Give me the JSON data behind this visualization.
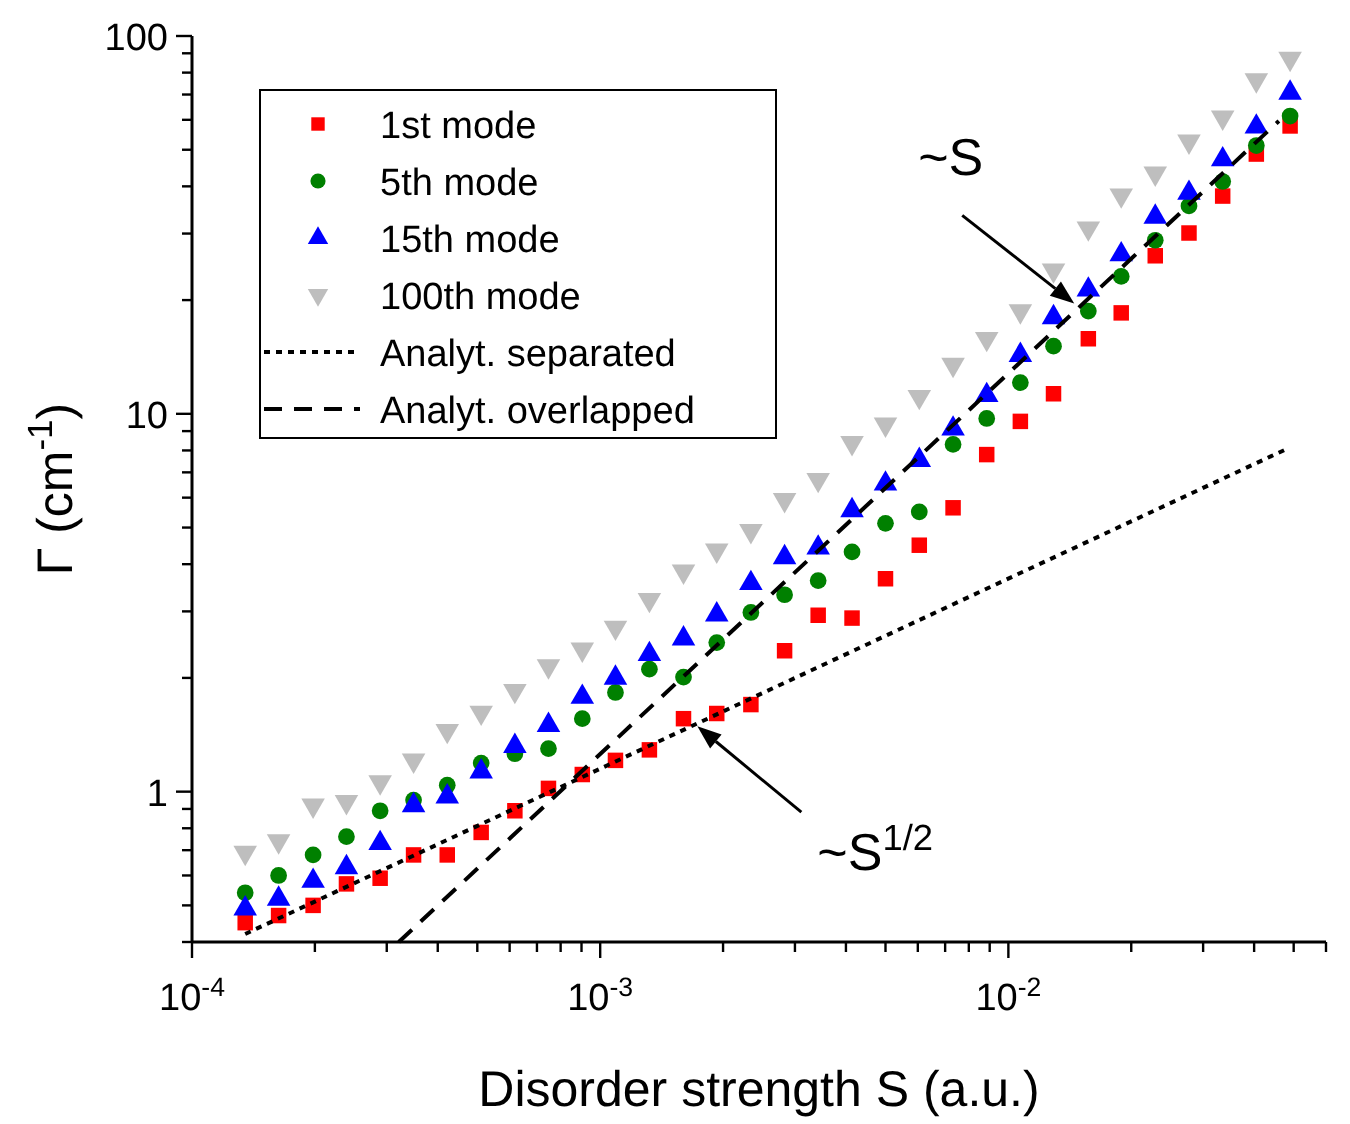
{
  "chart_data": {
    "type": "scatter",
    "xlabel": "Disorder strength S (a.u.)",
    "ylabel": "Γ (cm$^{-1}$)",
    "log": "xy",
    "xlim": [
      0.0001,
      0.06
    ],
    "ylim": [
      0.4,
      100
    ],
    "xticks": [
      {
        "value": 0.0001,
        "label": "10$^{-4}$"
      },
      {
        "value": 0.0002,
        "label": null
      },
      {
        "value": 0.0003,
        "label": null
      },
      {
        "value": 0.0004,
        "label": null
      },
      {
        "value": 0.0005,
        "label": null
      },
      {
        "value": 0.0006,
        "label": null
      },
      {
        "value": 0.0007,
        "label": null
      },
      {
        "value": 0.0008,
        "label": null
      },
      {
        "value": 0.0009,
        "label": null
      },
      {
        "value": 0.001,
        "label": "10$^{-3}$"
      },
      {
        "value": 0.002,
        "label": null
      },
      {
        "value": 0.003,
        "label": null
      },
      {
        "value": 0.004,
        "label": null
      },
      {
        "value": 0.005,
        "label": null
      },
      {
        "value": 0.006,
        "label": null
      },
      {
        "value": 0.007,
        "label": null
      },
      {
        "value": 0.008,
        "label": null
      },
      {
        "value": 0.009,
        "label": null
      },
      {
        "value": 0.01,
        "label": "10$^{-2}$"
      },
      {
        "value": 0.02,
        "label": null
      },
      {
        "value": 0.03,
        "label": null
      },
      {
        "value": 0.04,
        "label": null
      },
      {
        "value": 0.05,
        "label": null
      },
      {
        "value": 0.06,
        "label": null
      }
    ],
    "yticks": [
      {
        "value": 0.4,
        "label": null
      },
      {
        "value": 0.5,
        "label": null
      },
      {
        "value": 0.6,
        "label": null
      },
      {
        "value": 0.7,
        "label": null
      },
      {
        "value": 0.8,
        "label": null
      },
      {
        "value": 0.9,
        "label": null
      },
      1,
      {
        "value": 2,
        "label": null
      },
      {
        "value": 3,
        "label": null
      },
      {
        "value": 4,
        "label": null
      },
      {
        "value": 5,
        "label": null
      },
      {
        "value": 6,
        "label": null
      },
      {
        "value": 7,
        "label": null
      },
      {
        "value": 8,
        "label": null
      },
      {
        "value": 9,
        "label": null
      },
      10,
      {
        "value": 20,
        "label": null
      },
      {
        "value": 30,
        "label": null
      },
      {
        "value": 40,
        "label": null
      },
      {
        "value": 50,
        "label": null
      },
      {
        "value": 60,
        "label": null
      },
      {
        "value": 70,
        "label": null
      },
      {
        "value": 80,
        "label": null
      },
      {
        "value": 90,
        "label": null
      },
      100
    ],
    "x": [
      0.000135,
      0.000163,
      0.000198,
      0.000239,
      0.000289,
      0.000349,
      0.000422,
      0.000511,
      0.000618,
      0.000747,
      0.000904,
      0.00109,
      0.00132,
      0.0016,
      0.00193,
      0.00234,
      0.00283,
      0.00342,
      0.00414,
      0.005,
      0.00605,
      0.00732,
      0.00885,
      0.0107,
      0.0129,
      0.0157,
      0.0189,
      0.0229,
      0.0277,
      0.0335,
      0.0405,
      0.049
    ],
    "legend": "top left",
    "grid": false,
    "series": [
      {
        "name": "1st mode",
        "color": "#ff0000",
        "marker": "square",
        "values": [
          0.45,
          0.47,
          0.5,
          0.57,
          0.59,
          0.68,
          0.68,
          0.78,
          0.89,
          1.02,
          1.11,
          1.21,
          1.29,
          1.56,
          1.61,
          1.7,
          2.36,
          2.93,
          2.88,
          3.66,
          4.49,
          5.64,
          7.8,
          9.55,
          11.3,
          15.8,
          18.5,
          26.2,
          30.1,
          37.7,
          48.7,
          57.8
        ]
      },
      {
        "name": "5th mode",
        "color": "#008000",
        "marker": "circle",
        "values": [
          0.54,
          0.6,
          0.68,
          0.76,
          0.89,
          0.95,
          1.04,
          1.19,
          1.26,
          1.3,
          1.56,
          1.83,
          2.11,
          2.01,
          2.48,
          2.98,
          3.32,
          3.62,
          4.31,
          5.13,
          5.5,
          8.3,
          9.72,
          12.1,
          15.1,
          18.7,
          23.1,
          28.8,
          35.5,
          41.2,
          51.3,
          61.4
        ]
      },
      {
        "name": "15th mode",
        "color": "#0000ff",
        "marker": "triangle",
        "values": [
          0.49,
          0.52,
          0.58,
          0.63,
          0.73,
          0.92,
          0.97,
          1.13,
          1.32,
          1.5,
          1.78,
          2.0,
          2.31,
          2.54,
          2.94,
          3.56,
          4.17,
          4.42,
          5.55,
          6.53,
          7.54,
          9.13,
          11.2,
          14.3,
          18.0,
          21.3,
          26.4,
          33.2,
          38.4,
          47.1,
          57.5,
          70.7
        ]
      },
      {
        "name": "100th mode",
        "color": "#bebebe",
        "marker": "triangle-down",
        "values": [
          0.69,
          0.74,
          0.92,
          0.94,
          1.06,
          1.21,
          1.45,
          1.62,
          1.85,
          2.15,
          2.38,
          2.72,
          3.22,
          3.83,
          4.35,
          4.9,
          5.92,
          6.69,
          8.38,
          9.38,
          11.1,
          13.5,
          15.8,
          18.7,
          24.0,
          31.0,
          37.9,
          43.3,
          52.6,
          60.9,
          76.4,
          87.1
        ]
      },
      {
        "name": "Analyt. separated",
        "type": "line",
        "color": "#000000",
        "marker": "none",
        "line_style": "dotted",
        "x": [
          0.000135,
          0.0484
        ],
        "values": [
          0.42,
          8.1
        ]
      },
      {
        "name": "Analyt. overlapped",
        "type": "line",
        "color": "#000000",
        "marker": "none",
        "line_style": "dashed",
        "x": [
          0.000321,
          0.046
        ],
        "values": [
          0.4,
          59.6
        ]
      }
    ],
    "annotations": [
      {
        "text": "~S",
        "x": 0.0145,
        "y": 19.6
      },
      {
        "text": "~S$^{1/2}$",
        "x": 0.00173,
        "y": 1.49
      }
    ]
  }
}
